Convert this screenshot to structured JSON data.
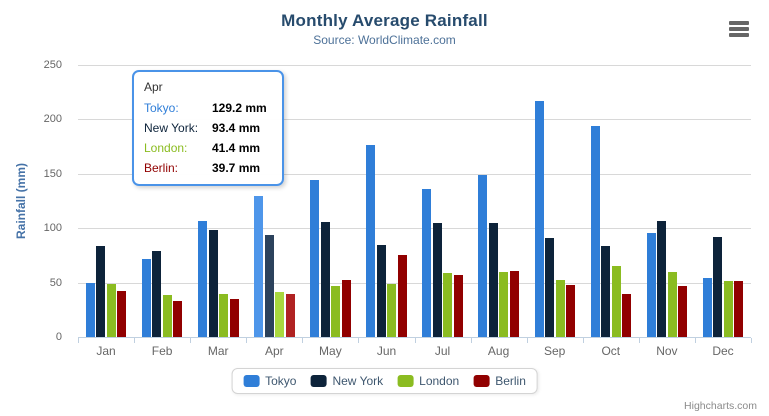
{
  "chart_data": {
    "type": "bar",
    "title": "Monthly Average Rainfall",
    "subtitle": "Source: WorldClimate.com",
    "xlabel": "",
    "ylabel": "Rainfall (mm)",
    "ylim": [
      0,
      250
    ],
    "y_ticks": [
      0,
      50,
      100,
      150,
      200,
      250
    ],
    "grid": true,
    "legend_position": "bottom",
    "categories": [
      "Jan",
      "Feb",
      "Mar",
      "Apr",
      "May",
      "Jun",
      "Jul",
      "Aug",
      "Sep",
      "Oct",
      "Nov",
      "Dec"
    ],
    "series": [
      {
        "name": "Tokyo",
        "color": "#2f7ed8",
        "hover_color": "#4e96ea",
        "values": [
          49.9,
          71.5,
          106.4,
          129.2,
          144.0,
          176.0,
          135.6,
          148.5,
          216.4,
          194.1,
          95.6,
          54.4
        ]
      },
      {
        "name": "New York",
        "color": "#0d233a",
        "hover_color": "#2c425c",
        "values": [
          83.6,
          78.8,
          98.5,
          93.4,
          106.0,
          84.5,
          105.0,
          104.3,
          91.2,
          83.5,
          106.6,
          92.3
        ]
      },
      {
        "name": "London",
        "color": "#8bbc21",
        "hover_color": "#a9d83e",
        "values": [
          48.9,
          38.8,
          39.3,
          41.4,
          47.0,
          48.3,
          59.0,
          59.6,
          52.4,
          65.2,
          59.3,
          51.2
        ]
      },
      {
        "name": "Berlin",
        "color": "#910000",
        "hover_color": "#b02222",
        "values": [
          42.4,
          33.2,
          34.5,
          39.7,
          52.6,
          75.5,
          57.4,
          60.4,
          47.6,
          39.1,
          46.8,
          51.1
        ]
      }
    ],
    "hovered_category": "Apr",
    "hovered_category_index": 3
  },
  "tooltip": {
    "header": "Apr",
    "border_color": "#4a93e8",
    "rows": [
      {
        "label": "Tokyo:",
        "value": "129.2 mm",
        "color": "#2f7ed8"
      },
      {
        "label": "New York:",
        "value": "93.4 mm",
        "color": "#0d233a"
      },
      {
        "label": "London:",
        "value": "41.4 mm",
        "color": "#8bbc21"
      },
      {
        "label": "Berlin:",
        "value": "39.7 mm",
        "color": "#910000"
      }
    ]
  },
  "credits": {
    "label": "Highcharts.com"
  },
  "menu": {
    "icon": "hamburger-menu-icon"
  },
  "theme": {
    "title_color": "#274b6d",
    "subtitle_color": "#4d7198",
    "axis_title_color": "#4572a7",
    "tick_label_color": "#666666",
    "grid_color": "#d8d8d8",
    "axis_line_color": "#c0d0e0",
    "legend_text_color": "#3e576f",
    "credits_color": "#8a8a8a",
    "menu_icon_color": "#666666",
    "background": "#ffffff"
  }
}
